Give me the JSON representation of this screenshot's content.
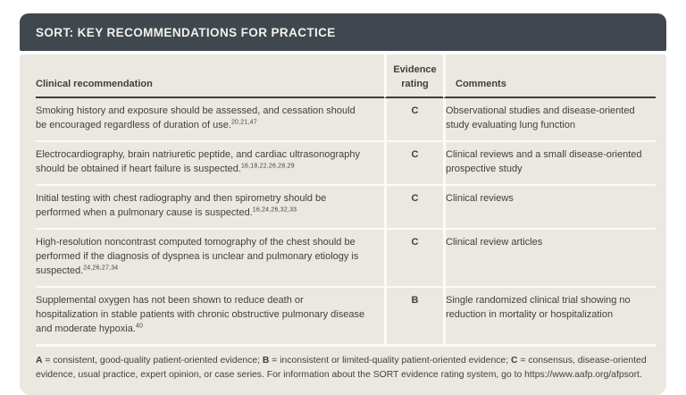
{
  "header": {
    "title": "SORT: KEY RECOMMENDATIONS FOR PRACTICE"
  },
  "table": {
    "columns": {
      "recommendation": "Clinical recommendation",
      "rating": "Evidence rating",
      "comments": "Comments"
    },
    "rows": [
      {
        "recommendation": "Smoking history and exposure should be assessed, and cessation should be encouraged regardless of duration of use.",
        "refs": "20,21,47",
        "rating": "C",
        "comment": "Observational studies and disease-oriented study evaluating lung function"
      },
      {
        "recommendation": "Electrocardiography, brain natriuretic peptide, and cardiac ultrasonography should be obtained if heart failure is suspected.",
        "refs": "16,18,22,26,28,29",
        "rating": "C",
        "comment": "Clinical reviews and a small disease-oriented prospective study"
      },
      {
        "recommendation": "Initial testing with chest radiography and then spirometry should be performed when a pulmonary cause is suspected.",
        "refs": "16,24,26,32,33",
        "rating": "C",
        "comment": "Clinical reviews"
      },
      {
        "recommendation": "High-resolution noncontrast computed tomography of the chest should be performed if the diagnosis of dyspnea is unclear and pulmonary etiology is suspected.",
        "refs": "24,26,27,34",
        "rating": "C",
        "comment": "Clinical review articles"
      },
      {
        "recommendation": "Supplemental oxygen has not been shown to reduce death or hospitalization in stable patients with chronic obstructive pulmonary disease and moderate hypoxia.",
        "refs": "40",
        "rating": "B",
        "comment": "Single randomized clinical trial showing no reduction in mortality or hospitalization"
      }
    ]
  },
  "footer": {
    "segments": [
      {
        "text": "A",
        "bold": true
      },
      {
        "text": " = consistent, good-quality patient-oriented evidence; ",
        "bold": false
      },
      {
        "text": "B",
        "bold": true
      },
      {
        "text": " = inconsistent or limited-quality patient-oriented evidence; ",
        "bold": false
      },
      {
        "text": "C",
        "bold": true
      },
      {
        "text": " = consensus, disease-oriented evidence, usual practice, expert opinion, or case series. For information about the SORT evidence rating system, go to https://www.aafp.org/afpsort.",
        "bold": false
      }
    ]
  },
  "colors": {
    "header_bg": "#41474f",
    "header_text": "#f2f0ed",
    "body_bg": "#ebe8e1",
    "text": "#3f3f40",
    "rule_dark": "#3c3c3d",
    "rule_light": "#fbfaf7"
  }
}
